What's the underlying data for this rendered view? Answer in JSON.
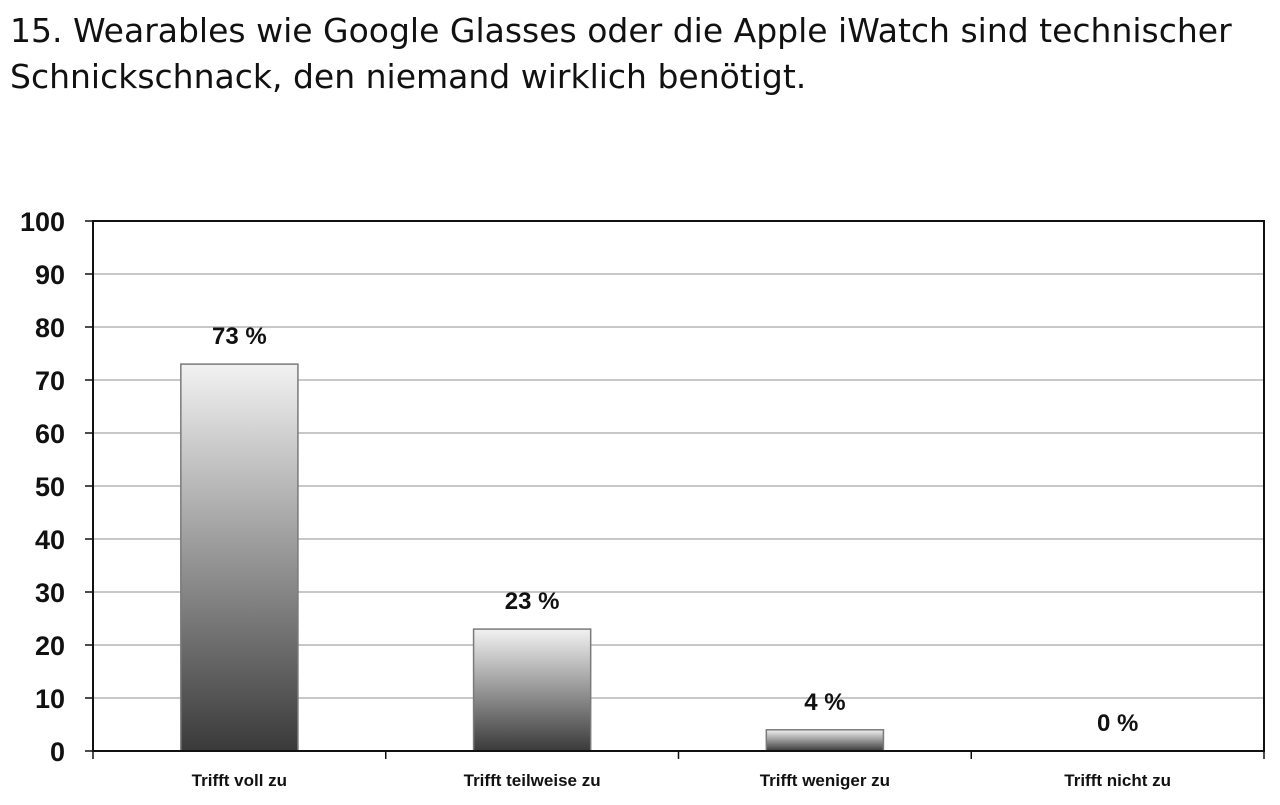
{
  "question": {
    "title": "15. Wearables wie Google Glasses oder die Apple iWatch sind technischer Schnickschnack, den niemand wirklich benötigt."
  },
  "chart_data": {
    "type": "bar",
    "title": "",
    "xlabel": "",
    "ylabel": "",
    "categories": [
      "Trifft voll zu",
      "Trifft teilweise zu",
      "Trifft weniger zu",
      "Trifft nicht zu"
    ],
    "values": [
      73,
      23,
      4,
      0
    ],
    "data_labels": [
      "73 %",
      "23 %",
      "4 %",
      "0 %"
    ],
    "ylim": [
      0,
      100
    ],
    "yticks": [
      0,
      10,
      20,
      30,
      40,
      50,
      60,
      70,
      80,
      90,
      100
    ],
    "grid": true,
    "legend": "none",
    "bar_fill": "gradient light-gray to dark-gray",
    "colors": {
      "bar_top": "#f2f2f2",
      "bar_bottom": "#3a3a3a",
      "bar_stroke": "#7a7a7a",
      "grid": "#c8c8c8",
      "frame": "#111111"
    }
  }
}
